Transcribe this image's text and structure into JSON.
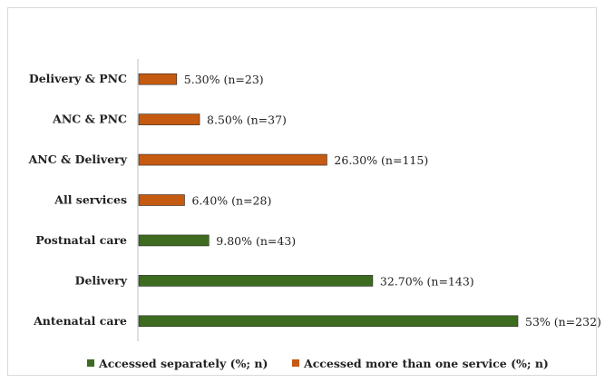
{
  "chart_data": {
    "type": "bar",
    "orientation": "horizontal",
    "title": "",
    "xlabel": "",
    "ylabel": "",
    "xlim": [
      0,
      55
    ],
    "grid": false,
    "legend_position": "bottom",
    "categories": [
      "Delivery & PNC",
      "ANC & PNC",
      "ANC & Delivery",
      "All services",
      "Postnatal care",
      "Delivery",
      "Antenatal care"
    ],
    "values": [
      5.3,
      8.5,
      26.3,
      6.4,
      9.8,
      32.7,
      53
    ],
    "data_labels": [
      "5.30% (n=23)",
      "8.50% (n=37)",
      "26.30% (n=115)",
      "6.40% (n=28)",
      "9.80% (n=43)",
      "32.70% (n=143)",
      "53% (n=232)"
    ],
    "series_index": [
      1,
      1,
      1,
      1,
      0,
      0,
      0
    ],
    "series": [
      {
        "name": "Accessed separately (%; n)",
        "color": "#3d6b1f"
      },
      {
        "name": "Accessed more than one service (%; n)",
        "color": "#c55a11"
      }
    ]
  }
}
